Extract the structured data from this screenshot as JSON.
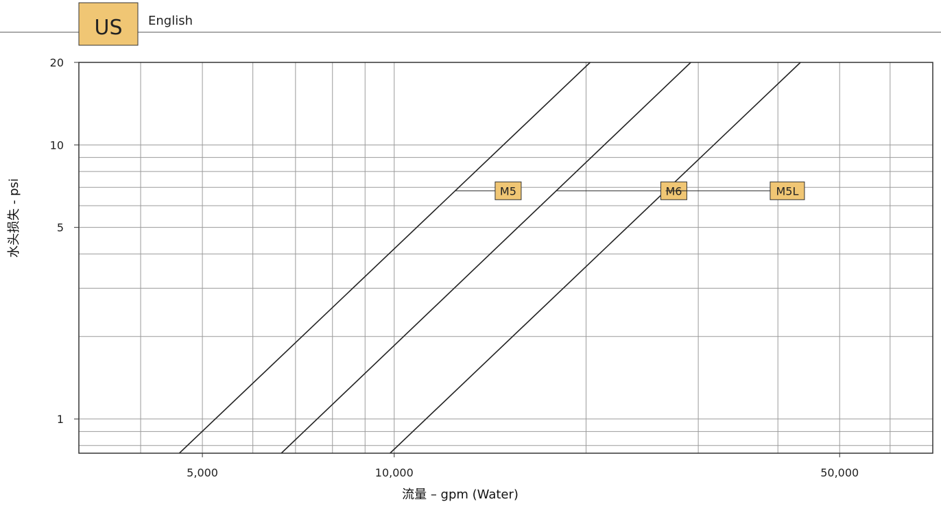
{
  "header": {
    "region_badge": "US",
    "language": "English",
    "badge_color": "#f0c674"
  },
  "chart_data": {
    "type": "line",
    "x_scale": "log",
    "y_scale": "log",
    "xlabel": "流量 – gpm (Water)",
    "ylabel": "水头损失 - psi",
    "xlim": [
      3200,
      70000
    ],
    "ylim": [
      0.75,
      20
    ],
    "x_ticks": [
      {
        "value": 5000,
        "label": "5,000"
      },
      {
        "value": 10000,
        "label": "10,000"
      },
      {
        "value": 50000,
        "label": "50,000"
      }
    ],
    "y_ticks": [
      {
        "value": 1,
        "label": "1"
      },
      {
        "value": 5,
        "label": "5"
      },
      {
        "value": 10,
        "label": "10"
      },
      {
        "value": 20,
        "label": "20"
      }
    ],
    "x_minor_grid": [
      4000,
      5000,
      6000,
      7000,
      8000,
      9000,
      10000,
      20000,
      30000,
      40000,
      50000,
      60000
    ],
    "y_minor_grid": [
      0.8,
      0.9,
      1,
      2,
      3,
      4,
      5,
      6,
      7,
      8,
      9,
      10,
      20
    ],
    "grid": true,
    "label_color": "#f0c674",
    "series": [
      {
        "name": "M5",
        "points": [
          [
            4600,
            0.75
          ],
          [
            20300,
            20
          ]
        ],
        "label_at": [
          14400,
          6.8
        ]
      },
      {
        "name": "M6",
        "points": [
          [
            6650,
            0.75
          ],
          [
            29200,
            20
          ]
        ],
        "label_at": [
          26200,
          6.8
        ]
      },
      {
        "name": "M5L",
        "points": [
          [
            9850,
            0.75
          ],
          [
            43400,
            20
          ]
        ],
        "label_at": [
          38900,
          6.8
        ]
      }
    ]
  }
}
